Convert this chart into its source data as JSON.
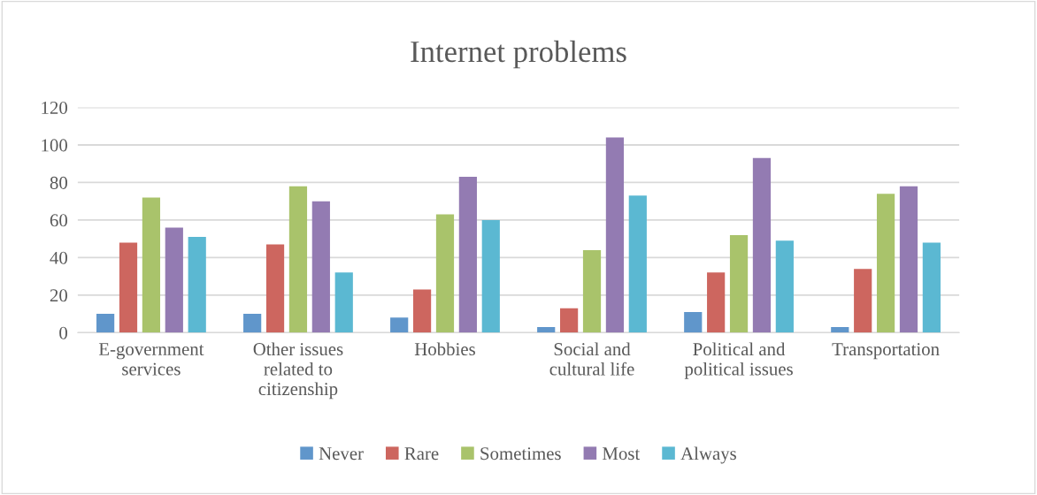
{
  "chart_data": {
    "type": "bar",
    "title": "Internet problems",
    "categories": [
      "E-government\nservices",
      "Other issues\nrelated to\ncitizenship",
      "Hobbies",
      "Social and\ncultural life",
      "Political and\npolitical issues",
      "Transportation"
    ],
    "series": [
      {
        "name": "Never",
        "color": "#6096cb",
        "values": [
          10,
          10,
          8,
          3,
          11,
          3
        ]
      },
      {
        "name": "Rare",
        "color": "#cd665f",
        "values": [
          48,
          47,
          23,
          13,
          32,
          34
        ]
      },
      {
        "name": "Sometimes",
        "color": "#a9c36b",
        "values": [
          72,
          78,
          63,
          44,
          52,
          74
        ]
      },
      {
        "name": "Most",
        "color": "#937bb2",
        "values": [
          56,
          70,
          83,
          104,
          93,
          78
        ]
      },
      {
        "name": "Always",
        "color": "#5bb8d2",
        "values": [
          51,
          32,
          60,
          73,
          49,
          48
        ]
      }
    ],
    "ylim": [
      0,
      120
    ],
    "yticks": [
      0,
      20,
      40,
      60,
      80,
      100,
      120
    ],
    "grid": "y",
    "legend": "bottom"
  }
}
